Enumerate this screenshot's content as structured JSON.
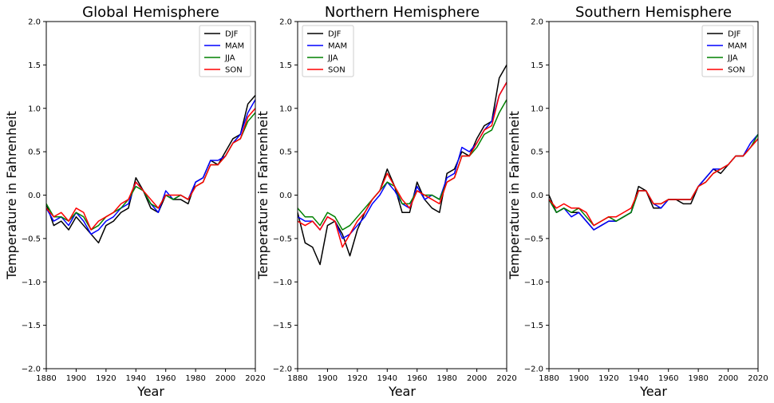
{
  "chart_data": [
    {
      "type": "line",
      "title": "Global Hemisphere",
      "xlabel": "Year",
      "ylabel": "Temperature in Fahrenheit",
      "xlim": [
        1880,
        2020
      ],
      "ylim": [
        -2.0,
        2.0
      ],
      "xticks": [
        1880,
        1900,
        1920,
        1940,
        1960,
        1980,
        2000,
        2020
      ],
      "yticks": [
        -2.0,
        -1.5,
        -1.0,
        -0.5,
        0.0,
        0.5,
        1.0,
        1.5,
        2.0
      ],
      "grid": false,
      "legend": "top-right",
      "x": [
        1880,
        1885,
        1890,
        1895,
        1900,
        1905,
        1910,
        1915,
        1920,
        1925,
        1930,
        1935,
        1940,
        1945,
        1950,
        1955,
        1960,
        1965,
        1970,
        1975,
        1980,
        1985,
        1990,
        1995,
        2000,
        2005,
        2010,
        2015,
        2020
      ],
      "series": [
        {
          "name": "DJF",
          "color": "#000000",
          "values": [
            -0.1,
            -0.35,
            -0.3,
            -0.4,
            -0.25,
            -0.35,
            -0.45,
            -0.55,
            -0.35,
            -0.3,
            -0.2,
            -0.15,
            0.2,
            0.05,
            -0.15,
            -0.2,
            0.0,
            -0.05,
            -0.05,
            -0.1,
            0.15,
            0.2,
            0.4,
            0.35,
            0.5,
            0.65,
            0.7,
            1.05,
            1.15
          ]
        },
        {
          "name": "MAM",
          "color": "#0000ff",
          "values": [
            -0.15,
            -0.3,
            -0.25,
            -0.35,
            -0.2,
            -0.3,
            -0.45,
            -0.4,
            -0.3,
            -0.25,
            -0.15,
            -0.1,
            0.15,
            0.05,
            -0.1,
            -0.2,
            0.05,
            -0.05,
            0.0,
            -0.05,
            0.15,
            0.2,
            0.4,
            0.4,
            0.45,
            0.6,
            0.7,
            0.95,
            1.1
          ]
        },
        {
          "name": "JJA",
          "color": "#008000",
          "values": [
            -0.1,
            -0.25,
            -0.25,
            -0.3,
            -0.2,
            -0.25,
            -0.4,
            -0.35,
            -0.25,
            -0.2,
            -0.15,
            -0.05,
            0.1,
            0.05,
            -0.1,
            -0.15,
            0.0,
            -0.05,
            0.0,
            -0.05,
            0.1,
            0.15,
            0.35,
            0.35,
            0.45,
            0.6,
            0.65,
            0.85,
            0.95
          ]
        },
        {
          "name": "SON",
          "color": "#ff0000",
          "values": [
            -0.15,
            -0.25,
            -0.2,
            -0.3,
            -0.15,
            -0.2,
            -0.4,
            -0.3,
            -0.25,
            -0.2,
            -0.1,
            -0.05,
            0.15,
            0.05,
            -0.05,
            -0.15,
            0.0,
            0.0,
            0.0,
            -0.05,
            0.1,
            0.15,
            0.35,
            0.35,
            0.45,
            0.6,
            0.65,
            0.9,
            1.0
          ]
        }
      ]
    },
    {
      "type": "line",
      "title": "Northern Hemisphere",
      "xlabel": "Year",
      "ylabel": "Temperature in Fahrenheit",
      "xlim": [
        1880,
        2020
      ],
      "ylim": [
        -2.0,
        2.0
      ],
      "xticks": [
        1880,
        1900,
        1920,
        1940,
        1960,
        1980,
        2000,
        2020
      ],
      "yticks": [
        -2.0,
        -1.5,
        -1.0,
        -0.5,
        0.0,
        0.5,
        1.0,
        1.5,
        2.0
      ],
      "grid": false,
      "legend": "top-left",
      "x": [
        1880,
        1885,
        1890,
        1895,
        1900,
        1905,
        1910,
        1915,
        1920,
        1925,
        1930,
        1935,
        1940,
        1945,
        1950,
        1955,
        1960,
        1965,
        1970,
        1975,
        1980,
        1985,
        1990,
        1995,
        2000,
        2005,
        2010,
        2015,
        2020
      ],
      "series": [
        {
          "name": "DJF",
          "color": "#000000",
          "values": [
            -0.2,
            -0.55,
            -0.6,
            -0.8,
            -0.35,
            -0.3,
            -0.45,
            -0.7,
            -0.4,
            -0.2,
            -0.05,
            0.05,
            0.3,
            0.1,
            -0.2,
            -0.2,
            0.15,
            -0.05,
            -0.15,
            -0.2,
            0.25,
            0.3,
            0.5,
            0.45,
            0.65,
            0.8,
            0.85,
            1.35,
            1.5
          ]
        },
        {
          "name": "MAM",
          "color": "#0000ff",
          "values": [
            -0.25,
            -0.3,
            -0.3,
            -0.4,
            -0.25,
            -0.3,
            -0.5,
            -0.45,
            -0.35,
            -0.25,
            -0.1,
            0.0,
            0.15,
            0.05,
            -0.1,
            -0.15,
            0.1,
            -0.05,
            0.0,
            -0.05,
            0.2,
            0.25,
            0.55,
            0.5,
            0.6,
            0.75,
            0.85,
            1.15,
            1.3
          ]
        },
        {
          "name": "JJA",
          "color": "#008000",
          "values": [
            -0.15,
            -0.25,
            -0.25,
            -0.35,
            -0.2,
            -0.25,
            -0.4,
            -0.35,
            -0.25,
            -0.15,
            -0.05,
            0.05,
            0.15,
            0.1,
            -0.1,
            -0.1,
            0.05,
            0.0,
            0.0,
            -0.05,
            0.15,
            0.2,
            0.45,
            0.45,
            0.55,
            0.7,
            0.75,
            0.95,
            1.1
          ]
        },
        {
          "name": "SON",
          "color": "#ff0000",
          "values": [
            -0.3,
            -0.35,
            -0.3,
            -0.4,
            -0.25,
            -0.3,
            -0.6,
            -0.45,
            -0.3,
            -0.2,
            -0.05,
            0.05,
            0.25,
            0.1,
            -0.05,
            -0.15,
            0.05,
            0.0,
            -0.05,
            -0.1,
            0.15,
            0.2,
            0.45,
            0.45,
            0.6,
            0.75,
            0.8,
            1.15,
            1.3
          ]
        }
      ]
    },
    {
      "type": "line",
      "title": "Southern Hemisphere",
      "xlabel": "Year",
      "ylabel": "Temperature in Fahrenheit",
      "xlim": [
        1880,
        2020
      ],
      "ylim": [
        -2.0,
        2.0
      ],
      "xticks": [
        1880,
        1900,
        1920,
        1940,
        1960,
        1980,
        2000,
        2020
      ],
      "yticks": [
        -2.0,
        -1.5,
        -1.0,
        -0.5,
        0.0,
        0.5,
        1.0,
        1.5,
        2.0
      ],
      "grid": false,
      "legend": "top-right",
      "x": [
        1880,
        1885,
        1890,
        1895,
        1900,
        1905,
        1910,
        1915,
        1920,
        1925,
        1930,
        1935,
        1940,
        1945,
        1950,
        1955,
        1960,
        1965,
        1970,
        1975,
        1980,
        1985,
        1990,
        1995,
        2000,
        2005,
        2010,
        2015,
        2020
      ],
      "series": [
        {
          "name": "DJF",
          "color": "#000000",
          "values": [
            0.0,
            -0.2,
            -0.15,
            -0.2,
            -0.2,
            -0.3,
            -0.4,
            -0.35,
            -0.3,
            -0.3,
            -0.25,
            -0.2,
            0.1,
            0.05,
            -0.15,
            -0.15,
            -0.05,
            -0.05,
            -0.1,
            -0.1,
            0.1,
            0.2,
            0.3,
            0.25,
            0.35,
            0.45,
            0.45,
            0.55,
            0.65
          ]
        },
        {
          "name": "MAM",
          "color": "#0000ff",
          "values": [
            -0.05,
            -0.2,
            -0.15,
            -0.25,
            -0.2,
            -0.3,
            -0.4,
            -0.35,
            -0.3,
            -0.3,
            -0.25,
            -0.2,
            0.05,
            0.05,
            -0.1,
            -0.15,
            -0.05,
            -0.05,
            -0.05,
            -0.05,
            0.1,
            0.2,
            0.3,
            0.3,
            0.35,
            0.45,
            0.45,
            0.6,
            0.7
          ]
        },
        {
          "name": "JJA",
          "color": "#008000",
          "values": [
            -0.05,
            -0.2,
            -0.15,
            -0.2,
            -0.15,
            -0.25,
            -0.35,
            -0.3,
            -0.25,
            -0.3,
            -0.25,
            -0.2,
            0.05,
            0.05,
            -0.1,
            -0.1,
            -0.05,
            -0.05,
            -0.05,
            -0.05,
            0.1,
            0.15,
            0.25,
            0.3,
            0.35,
            0.45,
            0.45,
            0.55,
            0.7
          ]
        },
        {
          "name": "SON",
          "color": "#ff0000",
          "values": [
            -0.05,
            -0.15,
            -0.1,
            -0.15,
            -0.15,
            -0.2,
            -0.35,
            -0.3,
            -0.25,
            -0.25,
            -0.2,
            -0.15,
            0.05,
            0.05,
            -0.1,
            -0.1,
            -0.05,
            -0.05,
            -0.05,
            -0.05,
            0.1,
            0.15,
            0.25,
            0.3,
            0.35,
            0.45,
            0.45,
            0.55,
            0.65
          ]
        }
      ]
    }
  ]
}
